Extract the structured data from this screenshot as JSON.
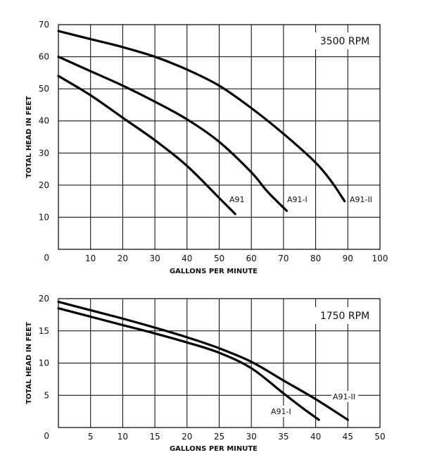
{
  "chart_data": [
    {
      "type": "line",
      "title": "3500 RPM",
      "xlabel": "GALLONS PER MINUTE",
      "ylabel": "TOTAL HEAD IN FEET",
      "xlim": [
        0,
        100
      ],
      "ylim": [
        0,
        70
      ],
      "xticks": [
        0,
        10,
        20,
        30,
        40,
        50,
        60,
        70,
        80,
        90,
        100
      ],
      "yticks": [
        0,
        10,
        20,
        30,
        40,
        50,
        60,
        70
      ],
      "grid": true,
      "series": [
        {
          "name": "A91",
          "x": [
            0,
            10,
            20,
            30,
            40,
            50,
            55
          ],
          "y": [
            54,
            48,
            41,
            34,
            26,
            16,
            11
          ]
        },
        {
          "name": "A91-I",
          "x": [
            0,
            10,
            20,
            30,
            40,
            50,
            60,
            65,
            71
          ],
          "y": [
            60,
            55.5,
            51,
            46,
            40.5,
            33.5,
            24,
            18,
            12
          ]
        },
        {
          "name": "A91-II",
          "x": [
            0,
            10,
            20,
            30,
            40,
            50,
            60,
            70,
            80,
            85,
            89
          ],
          "y": [
            68,
            65.5,
            63,
            60,
            56,
            51,
            44,
            36,
            27,
            21,
            15
          ]
        }
      ]
    },
    {
      "type": "line",
      "title": "1750 RPM",
      "xlabel": "GALLONS PER MINUTE",
      "ylabel": "TOTAL HEAD IN FEET",
      "xlim": [
        0,
        50
      ],
      "ylim": [
        0,
        20
      ],
      "xticks": [
        0,
        5,
        10,
        15,
        20,
        25,
        30,
        35,
        40,
        45,
        50
      ],
      "yticks": [
        0,
        5,
        10,
        15,
        20
      ],
      "grid": true,
      "series": [
        {
          "name": "A91-I",
          "x": [
            0,
            5,
            10,
            15,
            20,
            25,
            30,
            35,
            38,
            40.5
          ],
          "y": [
            18.5,
            17.2,
            15.9,
            14.6,
            13.2,
            11.6,
            9.2,
            5.3,
            3,
            1.2
          ]
        },
        {
          "name": "A91-II",
          "x": [
            0,
            5,
            10,
            15,
            20,
            25,
            30,
            35,
            40,
            45
          ],
          "y": [
            19.5,
            18.2,
            16.9,
            15.5,
            14,
            12.3,
            10.2,
            7.3,
            4.4,
            1.2
          ]
        }
      ]
    }
  ]
}
